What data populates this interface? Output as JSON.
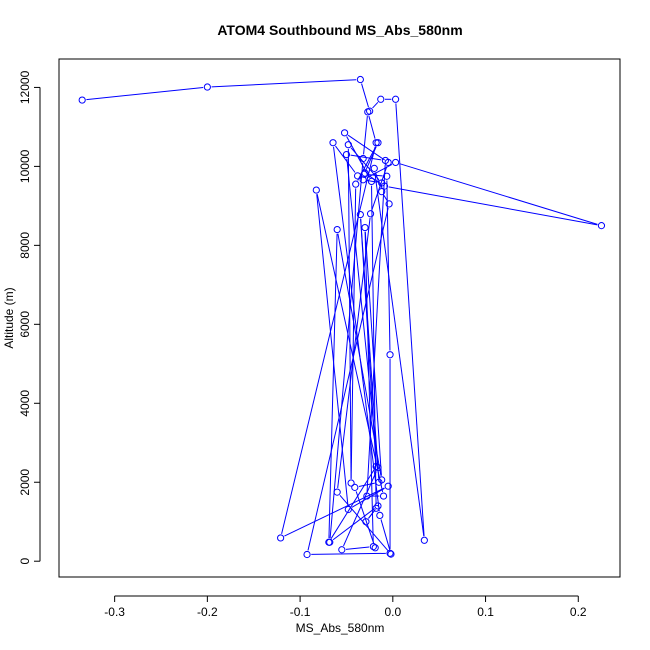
{
  "chart_data": {
    "type": "line",
    "title": "ATOM4 Southbound MS_Abs_580nm",
    "xlabel": "MS_Abs_580nm",
    "ylabel": "Altitude (m)",
    "xlim": [
      -0.36,
      0.245
    ],
    "ylim": [
      -400,
      12720
    ],
    "xticks": [
      -0.3,
      -0.2,
      -0.1,
      0.0,
      0.1,
      0.2
    ],
    "xtick_labels": [
      "-0.3",
      "-0.2",
      "-0.1",
      "0.0",
      "0.1",
      "0.2"
    ],
    "yticks": [
      0,
      2000,
      4000,
      6000,
      8000,
      10000,
      12000
    ],
    "ytick_labels": [
      "0",
      "2000",
      "4000",
      "6000",
      "8000",
      "10000",
      "12000"
    ],
    "line_color": "#0000ff",
    "marker": "open-circle",
    "grid": false,
    "series": [
      {
        "x": [
          -0.335,
          -0.2,
          -0.035,
          -0.025,
          -0.013,
          0.003,
          0.034,
          -0.02,
          -0.012,
          -0.004,
          -0.0925,
          -0.003,
          -0.003,
          -0.0065,
          -0.031,
          -0.016,
          -0.04,
          -0.045,
          -0.048,
          -0.012,
          -0.032,
          0.003,
          0.225,
          -0.009,
          -0.03,
          -0.038,
          -0.0645,
          -0.014,
          -0.002,
          -0.06,
          -0.024,
          -0.005,
          -0.052,
          -0.023,
          -0.018,
          -0.029,
          -0.016,
          -0.068,
          -0.032,
          -0.027,
          -0.018,
          -0.121,
          -0.005,
          -0.048,
          -0.0825,
          -0.01,
          -0.028,
          -0.008,
          -0.05,
          -0.016,
          -0.055,
          -0.021,
          -0.03,
          -0.012,
          -0.06,
          -0.069,
          -0.018,
          -0.035,
          -0.015,
          -0.041,
          -0.019
        ],
        "y": [
          11680,
          12010,
          12200,
          11400,
          11700,
          11700,
          530,
          9950,
          9360,
          9050,
          170,
          200,
          5230,
          9750,
          9800,
          10600,
          9550,
          1980,
          10550,
          9580,
          9660,
          10100,
          8500,
          9500,
          9830,
          9760,
          10600,
          1160,
          180,
          1750,
          8800,
          10100,
          10850,
          9620,
          1340,
          1000,
          1400,
          480,
          10200,
          11380,
          10600,
          590,
          1900,
          1310,
          9400,
          1650,
          1650,
          10150,
          10300,
          2370,
          290,
          370,
          8450,
          2060,
          8400,
          480,
          2400,
          8780,
          2000,
          1870,
          340
        ]
      }
    ]
  }
}
